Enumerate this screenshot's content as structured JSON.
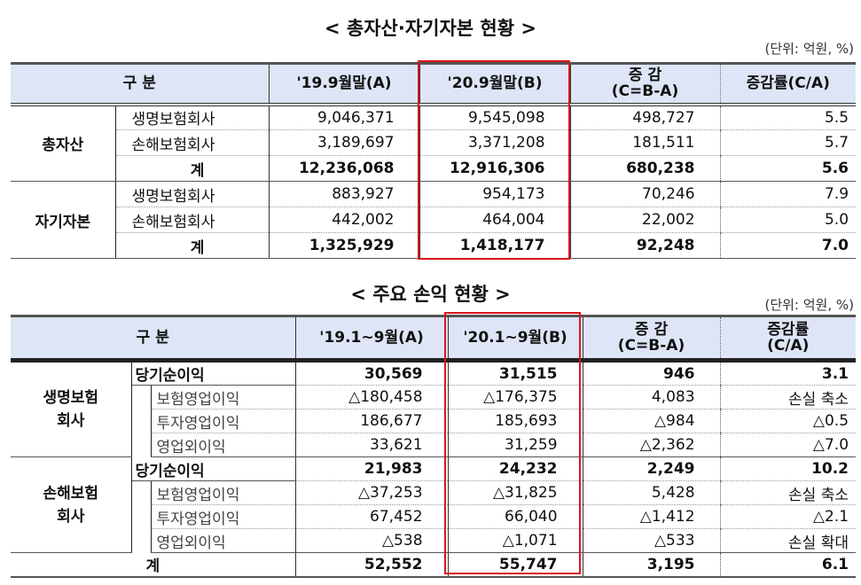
{
  "table1": {
    "title": "< 총자산·자기자본 현황 >",
    "unit": "(단위: 억원, %)",
    "headers": [
      "구  분",
      "'19.9월말(A)",
      "'20.9월말(B)",
      "증 감\n(C=B-A)",
      "증감률(C/A)"
    ],
    "groups": [
      {
        "name": "총자산",
        "rows": [
          {
            "label": "생명보험회사",
            "a": "9,046,371",
            "b": "9,545,098",
            "c": "498,727",
            "rate": "5.5"
          },
          {
            "label": "손해보험회사",
            "a": "3,189,697",
            "b": "3,371,208",
            "c": "181,511",
            "rate": "5.7"
          },
          {
            "label": "계",
            "a": "12,236,068",
            "b": "12,916,306",
            "c": "680,238",
            "rate": "5.6"
          }
        ]
      },
      {
        "name": "자기자본",
        "rows": [
          {
            "label": "생명보험회사",
            "a": "883,927",
            "b": "954,173",
            "c": "70,246",
            "rate": "7.9"
          },
          {
            "label": "손해보험회사",
            "a": "442,002",
            "b": "464,004",
            "c": "22,002",
            "rate": "5.0"
          },
          {
            "label": "계",
            "a": "1,325,929",
            "b": "1,418,177",
            "c": "92,248",
            "rate": "7.0"
          }
        ]
      }
    ]
  },
  "table2": {
    "title": "< 주요 손익 현황 >",
    "unit": "(단위: 억원, %)",
    "headers": [
      "구  분",
      "'19.1~9월(A)",
      "'20.1~9월(B)",
      "증 감\n(C=B-A)",
      "증감률\n(C/A)"
    ],
    "groups": [
      {
        "name": "생명보험\n회사",
        "rows": [
          {
            "label": "당기순이익",
            "a": "30,569",
            "b": "31,515",
            "c": "946",
            "rate": "3.1"
          },
          {
            "label": "보험영업이익",
            "a": "△180,458",
            "b": "△176,375",
            "c": "4,083",
            "rate": "손실 축소"
          },
          {
            "label": "투자영업이익",
            "a": "186,677",
            "b": "185,693",
            "c": "△984",
            "rate": "△0.5"
          },
          {
            "label": "영업외이익",
            "a": "33,621",
            "b": "31,259",
            "c": "△2,362",
            "rate": "△7.0"
          }
        ]
      },
      {
        "name": "손해보험\n회사",
        "rows": [
          {
            "label": "당기순이익",
            "a": "21,983",
            "b": "24,232",
            "c": "2,249",
            "rate": "10.2"
          },
          {
            "label": "보험영업이익",
            "a": "△37,253",
            "b": "△31,825",
            "c": "5,428",
            "rate": "손실 축소"
          },
          {
            "label": "투자영업이익",
            "a": "67,452",
            "b": "66,040",
            "c": "△1,412",
            "rate": "△2.1"
          },
          {
            "label": "영업외이익",
            "a": "△538",
            "b": "△1,071",
            "c": "△533",
            "rate": "손실 확대"
          }
        ]
      }
    ],
    "total": {
      "label": "계",
      "a": "52,552",
      "b": "55,747",
      "c": "3,195",
      "rate": "6.1"
    }
  },
  "colors": {
    "header_bg": "#dde5f6",
    "highlight_box": "#d9161c"
  }
}
